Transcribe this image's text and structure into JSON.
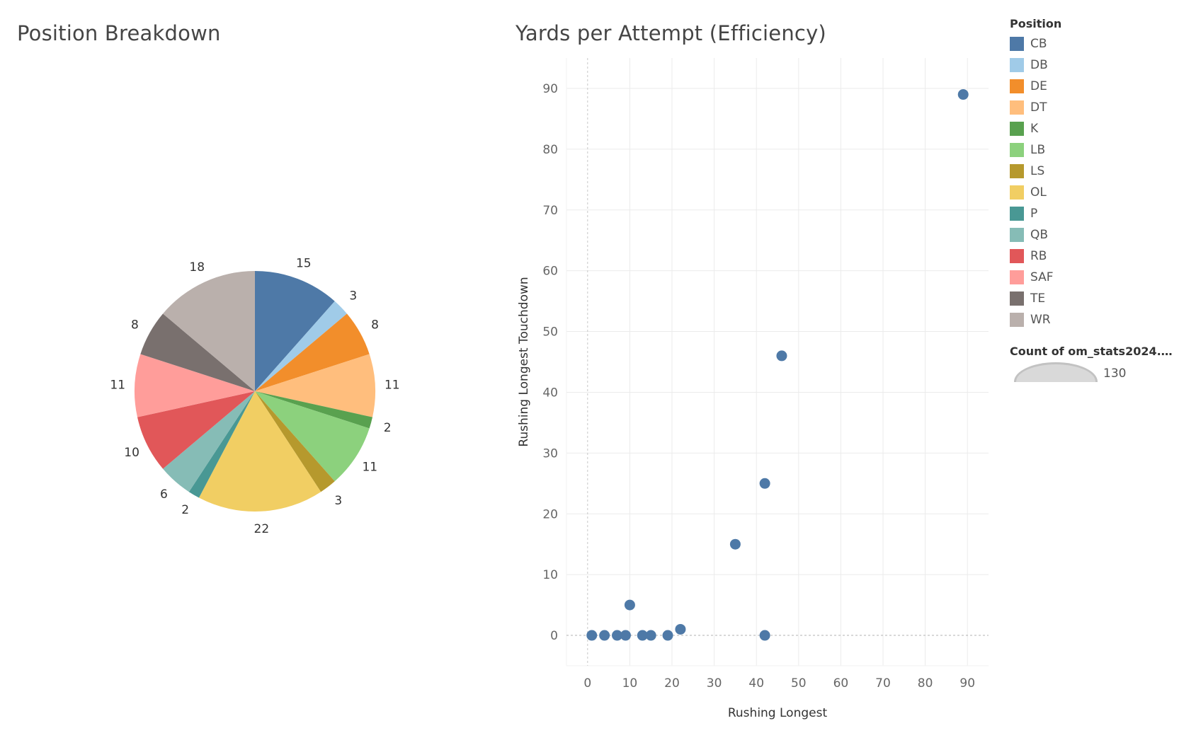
{
  "pie": {
    "title": "Position Breakdown"
  },
  "scatter": {
    "title": "Yards per Attempt (Efficiency)",
    "xlabel": "Rushing Longest",
    "ylabel": "Rushing Longest Touchdown"
  },
  "legend": {
    "title": "Position",
    "items": [
      {
        "label": "CB",
        "color": "#4e79a7"
      },
      {
        "label": "DB",
        "color": "#a0cbe8"
      },
      {
        "label": "DE",
        "color": "#f28e2b"
      },
      {
        "label": "DT",
        "color": "#ffbe7d"
      },
      {
        "label": "K",
        "color": "#59a14f"
      },
      {
        "label": "LB",
        "color": "#8cd17d"
      },
      {
        "label": "LS",
        "color": "#b6992d"
      },
      {
        "label": "OL",
        "color": "#f1ce63"
      },
      {
        "label": "P",
        "color": "#499894"
      },
      {
        "label": "QB",
        "color": "#86bcb6"
      },
      {
        "label": "RB",
        "color": "#e15759"
      },
      {
        "label": "SAF",
        "color": "#ff9d9a"
      },
      {
        "label": "TE",
        "color": "#79706e"
      },
      {
        "label": "WR",
        "color": "#bab0ac"
      }
    ]
  },
  "size_legend": {
    "title": "Count of om_stats2024.c..",
    "value": "130"
  },
  "chart_data": [
    {
      "type": "pie",
      "title": "Position Breakdown",
      "categories": [
        "CB",
        "DB",
        "DE",
        "DT",
        "K",
        "LB",
        "LS",
        "OL",
        "P",
        "QB",
        "RB",
        "SAF",
        "TE",
        "WR"
      ],
      "values": [
        15,
        3,
        8,
        11,
        2,
        11,
        3,
        22,
        2,
        6,
        10,
        11,
        8,
        18
      ],
      "colors": [
        "#4e79a7",
        "#a0cbe8",
        "#f28e2b",
        "#ffbe7d",
        "#59a14f",
        "#8cd17d",
        "#b6992d",
        "#f1ce63",
        "#499894",
        "#86bcb6",
        "#e15759",
        "#ff9d9a",
        "#79706e",
        "#bab0ac"
      ]
    },
    {
      "type": "scatter",
      "title": "Yards per Attempt (Efficiency)",
      "xlabel": "Rushing Longest",
      "ylabel": "Rushing Longest Touchdown",
      "xlim": [
        -5,
        95
      ],
      "ylim": [
        -5,
        95
      ],
      "xticks": [
        0,
        10,
        20,
        30,
        40,
        50,
        60,
        70,
        80,
        90
      ],
      "yticks": [
        0,
        10,
        20,
        30,
        40,
        50,
        60,
        70,
        80,
        90
      ],
      "grid": true,
      "point_color": "#4e79a7",
      "points": [
        {
          "x": 1,
          "y": 0
        },
        {
          "x": 4,
          "y": 0
        },
        {
          "x": 7,
          "y": 0
        },
        {
          "x": 9,
          "y": 0
        },
        {
          "x": 10,
          "y": 5
        },
        {
          "x": 13,
          "y": 0
        },
        {
          "x": 15,
          "y": 0
        },
        {
          "x": 19,
          "y": 0
        },
        {
          "x": 22,
          "y": 1
        },
        {
          "x": 35,
          "y": 15
        },
        {
          "x": 42,
          "y": 0
        },
        {
          "x": 42,
          "y": 25
        },
        {
          "x": 46,
          "y": 46
        },
        {
          "x": 89,
          "y": 89
        }
      ]
    }
  ]
}
